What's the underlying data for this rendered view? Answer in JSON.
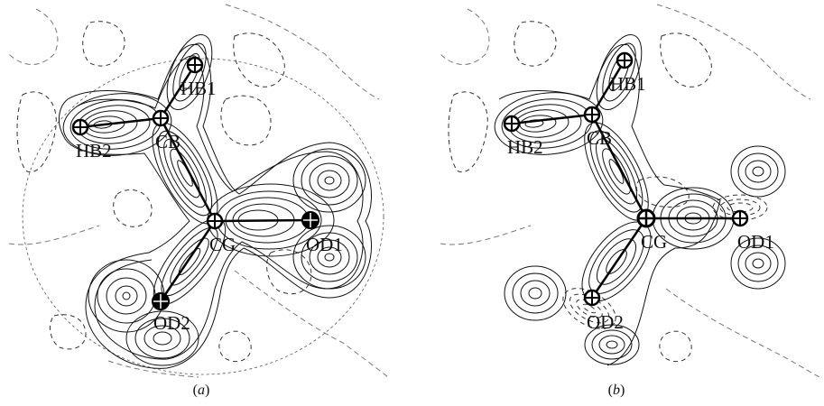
{
  "figure": {
    "panels": [
      {
        "id": "a",
        "caption": "a",
        "atoms": {
          "HB1": "HB1",
          "HB2": "HB2",
          "CB": "CB",
          "CG": "CG",
          "OD1": "OD1",
          "OD2": "OD2"
        }
      },
      {
        "id": "b",
        "caption": "b",
        "atoms": {
          "HB1": "HB1",
          "HB2": "HB2",
          "CB": "CB",
          "CG": "CG",
          "OD1": "OD1",
          "OD2": "OD2"
        }
      }
    ]
  }
}
